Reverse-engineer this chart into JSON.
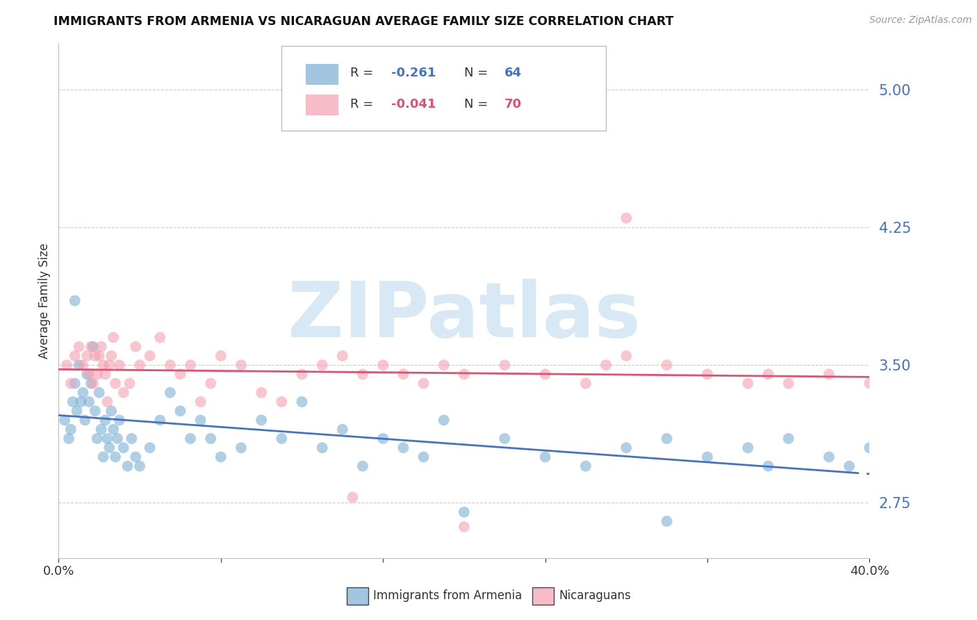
{
  "title": "IMMIGRANTS FROM ARMENIA VS NICARAGUAN AVERAGE FAMILY SIZE CORRELATION CHART",
  "source": "Source: ZipAtlas.com",
  "ylabel": "Average Family Size",
  "ylim": [
    2.45,
    5.25
  ],
  "xlim": [
    0.0,
    40.0
  ],
  "yticks": [
    2.75,
    3.5,
    4.25,
    5.0
  ],
  "legend_blue_r": "-0.261",
  "legend_blue_n": "64",
  "legend_pink_r": "-0.041",
  "legend_pink_n": "70",
  "blue_color": "#7BAFD4",
  "pink_color": "#F4A0B0",
  "trend_blue_color": "#4472C4",
  "trend_pink_color": "#E05070",
  "right_axis_color": "#4472C4",
  "watermark": "ZIPatlas",
  "blue_scatter_x": [
    0.3,
    0.5,
    0.6,
    0.7,
    0.8,
    0.9,
    1.0,
    1.1,
    1.2,
    1.3,
    1.4,
    1.5,
    1.6,
    1.7,
    1.8,
    1.9,
    2.0,
    2.1,
    2.2,
    2.3,
    2.4,
    2.5,
    2.6,
    2.7,
    2.8,
    2.9,
    3.0,
    3.2,
    3.4,
    3.6,
    3.8,
    4.0,
    4.5,
    5.0,
    5.5,
    6.0,
    6.5,
    7.0,
    7.5,
    8.0,
    9.0,
    10.0,
    11.0,
    12.0,
    13.0,
    14.0,
    15.0,
    16.0,
    17.0,
    18.0,
    19.0,
    20.0,
    22.0,
    24.0,
    26.0,
    28.0,
    30.0,
    32.0,
    34.0,
    35.0,
    36.0,
    38.0,
    39.0,
    40.0
  ],
  "blue_scatter_y": [
    3.2,
    3.1,
    3.15,
    3.3,
    3.4,
    3.25,
    3.5,
    3.3,
    3.35,
    3.2,
    3.45,
    3.3,
    3.4,
    3.6,
    3.25,
    3.1,
    3.35,
    3.15,
    3.0,
    3.2,
    3.1,
    3.05,
    3.25,
    3.15,
    3.0,
    3.1,
    3.2,
    3.05,
    2.95,
    3.1,
    3.0,
    2.95,
    3.05,
    3.2,
    3.35,
    3.25,
    3.1,
    3.2,
    3.1,
    3.0,
    3.05,
    3.2,
    3.1,
    3.3,
    3.05,
    3.15,
    2.95,
    3.1,
    3.05,
    3.0,
    3.2,
    2.7,
    3.1,
    3.0,
    2.95,
    3.05,
    3.1,
    3.0,
    3.05,
    2.95,
    3.1,
    3.0,
    2.95,
    3.05
  ],
  "blue_outlier_x": [
    0.8
  ],
  "blue_outlier_y": [
    3.85
  ],
  "pink_scatter_x": [
    0.4,
    0.6,
    0.8,
    1.0,
    1.2,
    1.4,
    1.5,
    1.6,
    1.7,
    1.8,
    1.9,
    2.0,
    2.1,
    2.2,
    2.3,
    2.4,
    2.5,
    2.6,
    2.7,
    2.8,
    3.0,
    3.2,
    3.5,
    3.8,
    4.0,
    4.5,
    5.0,
    5.5,
    6.0,
    6.5,
    7.0,
    7.5,
    8.0,
    9.0,
    10.0,
    11.0,
    12.0,
    13.0,
    14.0,
    15.0,
    16.0,
    17.0,
    18.0,
    19.0,
    20.0,
    22.0,
    24.0,
    26.0,
    27.0,
    28.0,
    30.0,
    32.0,
    34.0,
    35.0,
    36.0,
    38.0,
    40.0
  ],
  "pink_scatter_y": [
    3.5,
    3.4,
    3.55,
    3.6,
    3.5,
    3.55,
    3.45,
    3.6,
    3.4,
    3.55,
    3.45,
    3.55,
    3.6,
    3.5,
    3.45,
    3.3,
    3.5,
    3.55,
    3.65,
    3.4,
    3.5,
    3.35,
    3.4,
    3.6,
    3.5,
    3.55,
    3.65,
    3.5,
    3.45,
    3.5,
    3.3,
    3.4,
    3.55,
    3.5,
    3.35,
    3.3,
    3.45,
    3.5,
    3.55,
    3.45,
    3.5,
    3.45,
    3.4,
    3.5,
    3.45,
    3.5,
    3.45,
    3.4,
    3.5,
    3.55,
    3.5,
    3.45,
    3.4,
    3.45,
    3.4,
    3.45,
    3.4
  ],
  "pink_outlier1_x": [
    28.0
  ],
  "pink_outlier1_y": [
    4.3
  ],
  "pink_outlier2_x": [
    20.0
  ],
  "pink_outlier2_y": [
    2.62
  ],
  "pink_outlier3_x": [
    14.5
  ],
  "pink_outlier3_y": [
    2.78
  ],
  "blue_outlier2_x": [
    30.0
  ],
  "blue_outlier2_y": [
    2.65
  ]
}
